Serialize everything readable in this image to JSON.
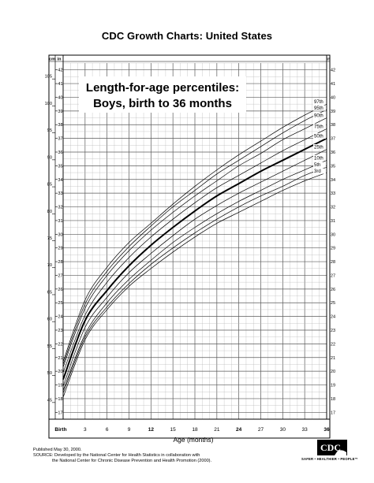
{
  "page_title": "CDC Growth Charts: United States",
  "footnote": {
    "published": "Published May 30, 2000.",
    "source_line1": "SOURCE: Developed by the National Center for Health Statistics in collaboration with",
    "source_line2": "the National Center for Chronic Disease Prevention and Health Promotion (2000)."
  },
  "logo": {
    "text": "CDC",
    "tagline": "SAFER • HEALTHIER • PEOPLE™"
  },
  "colors": {
    "ink": "#000000",
    "grid_minor": "#b5b5b5",
    "grid_major": "#5a5a5a"
  },
  "chart_data": {
    "type": "line",
    "title_line1": "Length-for-age percentiles:",
    "title_line2": "Boys, birth to 36 months",
    "xlabel": "Age (months)",
    "x_tick_labels": [
      {
        "x": 0,
        "label": "Birth",
        "bold": true
      },
      {
        "x": 3,
        "label": "3",
        "bold": false
      },
      {
        "x": 6,
        "label": "6",
        "bold": false
      },
      {
        "x": 9,
        "label": "9",
        "bold": false
      },
      {
        "x": 12,
        "label": "12",
        "bold": true
      },
      {
        "x": 15,
        "label": "15",
        "bold": false
      },
      {
        "x": 18,
        "label": "18",
        "bold": false
      },
      {
        "x": 21,
        "label": "21",
        "bold": false
      },
      {
        "x": 24,
        "label": "24",
        "bold": true
      },
      {
        "x": 27,
        "label": "27",
        "bold": false
      },
      {
        "x": 30,
        "label": "30",
        "bold": false
      },
      {
        "x": 33,
        "label": "33",
        "bold": false
      },
      {
        "x": 36,
        "label": "36",
        "bold": true
      }
    ],
    "xlim": [
      0,
      36
    ],
    "left_units": [
      "cm",
      "in"
    ],
    "right_unit": "in",
    "cm_ticks": [
      45,
      50,
      55,
      60,
      65,
      70,
      75,
      80,
      85,
      90,
      95,
      100,
      105
    ],
    "in_ticks": [
      17,
      18,
      19,
      20,
      21,
      22,
      23,
      24,
      25,
      26,
      27,
      28,
      29,
      30,
      31,
      32,
      33,
      34,
      35,
      36,
      37,
      38,
      39,
      40,
      41,
      42
    ],
    "ylim_in": [
      16.5,
      42.5
    ],
    "grid": true,
    "x": [
      0,
      3,
      6,
      9,
      12,
      15,
      18,
      21,
      24,
      27,
      30,
      33,
      36
    ],
    "series": [
      {
        "name": "97th",
        "bold": false,
        "values": [
          20.7,
          25.2,
          27.6,
          29.4,
          30.8,
          32.2,
          33.5,
          34.7,
          35.8,
          36.8,
          37.8,
          38.7,
          39.5
        ]
      },
      {
        "name": "95th",
        "bold": false,
        "values": [
          20.5,
          24.9,
          27.3,
          29.1,
          30.6,
          32.0,
          33.2,
          34.4,
          35.4,
          36.4,
          37.4,
          38.3,
          39.1
        ]
      },
      {
        "name": "90th",
        "bold": false,
        "values": [
          20.3,
          24.6,
          27.0,
          28.8,
          30.3,
          31.6,
          32.8,
          33.9,
          35.0,
          35.9,
          36.9,
          37.7,
          38.5
        ]
      },
      {
        "name": "75th",
        "bold": false,
        "values": [
          19.9,
          24.1,
          26.5,
          28.3,
          29.8,
          31.1,
          32.3,
          33.4,
          34.3,
          35.2,
          36.1,
          36.9,
          37.7
        ]
      },
      {
        "name": "50th",
        "bold": true,
        "values": [
          19.4,
          23.7,
          25.9,
          27.7,
          29.2,
          30.5,
          31.7,
          32.8,
          33.7,
          34.6,
          35.4,
          36.2,
          37.0
        ]
      },
      {
        "name": "25th",
        "bold": false,
        "values": [
          18.9,
          23.2,
          25.4,
          27.2,
          28.6,
          29.9,
          31.1,
          32.1,
          33.0,
          33.8,
          34.6,
          35.4,
          36.2
        ]
      },
      {
        "name": "10th",
        "bold": false,
        "values": [
          18.6,
          22.7,
          25.0,
          26.7,
          28.1,
          29.4,
          30.5,
          31.5,
          32.4,
          33.2,
          34.0,
          34.7,
          35.4
        ]
      },
      {
        "name": "5th",
        "bold": false,
        "values": [
          18.4,
          22.5,
          24.7,
          26.4,
          27.8,
          29.0,
          30.1,
          31.1,
          32.0,
          32.8,
          33.5,
          34.3,
          34.9
        ]
      },
      {
        "name": "3rd",
        "bold": false,
        "values": [
          18.1,
          22.3,
          24.5,
          26.2,
          27.5,
          28.7,
          29.8,
          30.8,
          31.6,
          32.4,
          33.2,
          33.9,
          34.5
        ]
      }
    ]
  }
}
